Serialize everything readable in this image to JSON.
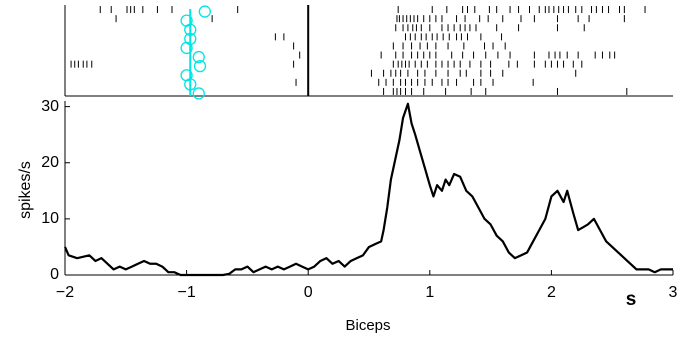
{
  "chart_data": [
    {
      "type": "raster",
      "xlim": [
        -2,
        3
      ],
      "event_line": 0,
      "marker_line": -0.97,
      "marker_color": "#00e5e5",
      "spike_color": "#000000",
      "markers": [
        -0.85,
        -1.0,
        -0.97,
        -0.97,
        -1.0,
        -0.9,
        -0.89,
        -1.0,
        -0.97,
        -0.9
      ],
      "trials": [
        [
          -1.71,
          -1.62,
          -1.49,
          -1.46,
          -1.43,
          -1.36,
          -1.24,
          -1.12,
          -0.58,
          0.74,
          1.02,
          1.14,
          1.27,
          1.31,
          1.37,
          1.49,
          1.55,
          1.66,
          1.73,
          1.82,
          1.9,
          1.95,
          1.98,
          2.02,
          2.06,
          2.1,
          2.14,
          2.2,
          2.25,
          2.33,
          2.37,
          2.42,
          2.47,
          2.56,
          2.6,
          2.77
        ],
        [
          -1.58,
          -0.79,
          0.73,
          0.75,
          0.78,
          0.81,
          0.84,
          0.87,
          0.9,
          0.95,
          1.0,
          1.05,
          1.1,
          1.22,
          1.29,
          1.41,
          1.48,
          1.6,
          1.75,
          1.86,
          2.05,
          2.22,
          2.31,
          2.6
        ],
        [
          0.72,
          0.78,
          0.82,
          0.86,
          0.89,
          0.93,
          1.0,
          1.1,
          1.15,
          1.2,
          1.25,
          1.29,
          1.33,
          1.38,
          1.55,
          1.73,
          2.05,
          2.27
        ],
        [
          -0.27,
          -0.2,
          0.8,
          0.84,
          0.88,
          0.93,
          0.97,
          1.02,
          1.06,
          1.11,
          1.16,
          1.22,
          1.26,
          1.31,
          1.42,
          1.59
        ],
        [
          -0.12,
          0.7,
          0.78,
          0.85,
          0.92,
          0.98,
          1.05,
          1.15,
          1.28,
          1.45,
          1.52,
          1.62
        ],
        [
          -0.07,
          0.6,
          0.72,
          0.78,
          0.85,
          0.9,
          0.95,
          1.0,
          1.05,
          1.18,
          1.27,
          1.36,
          1.46,
          1.56,
          1.66,
          1.86,
          1.98,
          2.03,
          2.07,
          2.13,
          2.22,
          2.36,
          2.42,
          2.48,
          2.52
        ],
        [
          -1.95,
          -1.92,
          -1.89,
          -1.85,
          -1.82,
          -1.78,
          -0.12,
          0.7,
          0.74,
          0.77,
          0.8,
          0.83,
          0.88,
          0.93,
          0.98,
          1.05,
          1.1,
          1.15,
          1.2,
          1.25,
          1.33,
          1.42,
          1.5,
          1.65,
          1.72,
          1.86,
          1.95,
          2.0,
          2.05,
          2.1,
          2.18,
          2.25
        ],
        [
          0.52,
          0.62,
          0.68,
          0.72,
          0.76,
          0.82,
          0.9,
          0.96,
          1.05,
          1.15,
          1.25,
          1.3,
          1.42,
          1.5,
          1.6,
          2.2
        ],
        [
          -0.1,
          0.58,
          0.64,
          0.7,
          0.76,
          0.8,
          0.85,
          0.9,
          0.96,
          1.02,
          1.1,
          1.15,
          1.22,
          1.36,
          1.42,
          1.52,
          1.85
        ],
        [
          0.62,
          0.7,
          0.73,
          0.76,
          0.8,
          0.85,
          0.95,
          1.13,
          1.34,
          1.46,
          2.05,
          2.62
        ]
      ]
    },
    {
      "type": "line",
      "y_label": "spikes/s",
      "x_label": "Biceps",
      "x_unit": "s",
      "color": "#000000",
      "xlim": [
        -2,
        3
      ],
      "ylim": [
        0,
        31
      ],
      "xticks": [
        {
          "value": -2,
          "label": "−2"
        },
        {
          "value": -1,
          "label": "−1"
        },
        0,
        1,
        2,
        3
      ],
      "yticks": [
        0,
        10,
        20,
        30
      ],
      "x": [
        -2.0,
        -1.97,
        -1.9,
        -1.8,
        -1.75,
        -1.7,
        -1.65,
        -1.6,
        -1.55,
        -1.5,
        -1.45,
        -1.4,
        -1.35,
        -1.3,
        -1.25,
        -1.2,
        -1.15,
        -1.1,
        -1.05,
        -1.0,
        -0.9,
        -0.8,
        -0.7,
        -0.65,
        -0.6,
        -0.55,
        -0.5,
        -0.45,
        -0.4,
        -0.35,
        -0.3,
        -0.25,
        -0.2,
        -0.15,
        -0.1,
        -0.05,
        0,
        0.05,
        0.1,
        0.15,
        0.2,
        0.25,
        0.3,
        0.35,
        0.4,
        0.45,
        0.5,
        0.55,
        0.6,
        0.62,
        0.65,
        0.68,
        0.72,
        0.75,
        0.78,
        0.82,
        0.85,
        0.88,
        0.92,
        0.96,
        1.0,
        1.03,
        1.06,
        1.1,
        1.13,
        1.16,
        1.2,
        1.25,
        1.3,
        1.35,
        1.4,
        1.45,
        1.5,
        1.55,
        1.6,
        1.65,
        1.7,
        1.75,
        1.8,
        1.85,
        1.9,
        1.95,
        2.0,
        2.05,
        2.1,
        2.13,
        2.18,
        2.22,
        2.26,
        2.3,
        2.35,
        2.4,
        2.45,
        2.5,
        2.55,
        2.6,
        2.65,
        2.7,
        2.8,
        2.85,
        2.9,
        2.95,
        3.0
      ],
      "values": [
        5,
        3.5,
        3,
        3.5,
        2.5,
        3,
        2,
        1,
        1.5,
        1,
        1.5,
        2,
        2.5,
        2,
        2,
        1.5,
        0.5,
        0.5,
        0,
        0,
        0,
        0,
        0,
        0.2,
        1,
        1,
        1.5,
        0.5,
        1,
        1.5,
        1,
        1.5,
        1,
        1.5,
        2,
        1.5,
        1,
        1.5,
        2.5,
        3,
        2,
        2.5,
        1.5,
        2.5,
        3,
        3.5,
        5,
        5.5,
        6,
        8,
        12,
        17,
        21,
        24,
        28,
        30.5,
        27,
        25,
        22,
        19,
        16,
        14,
        16,
        15,
        17,
        16,
        18,
        17.5,
        15,
        14,
        12,
        10,
        9,
        7,
        6,
        4,
        3,
        3.5,
        4,
        6,
        8,
        10,
        14,
        15,
        13,
        15,
        11,
        8,
        8.5,
        9,
        10,
        8,
        6,
        5,
        4,
        3,
        2,
        1,
        1,
        0.5,
        1,
        1,
        1
      ]
    }
  ]
}
